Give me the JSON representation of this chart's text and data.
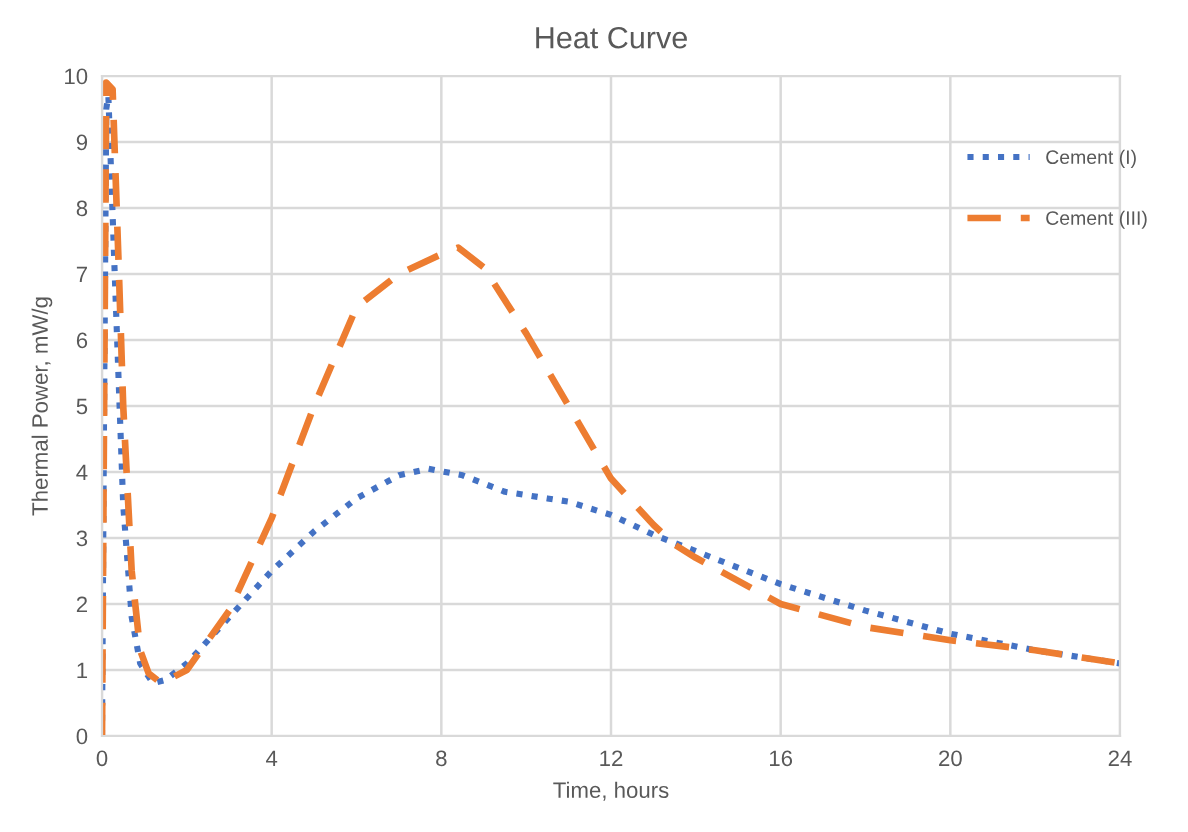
{
  "chart_data": {
    "type": "line",
    "title": "Heat Curve",
    "xlabel": "Time, hours",
    "ylabel": "Thermal Power, mW/g",
    "xlim": [
      0,
      24
    ],
    "xticks": [
      0,
      4,
      8,
      12,
      16,
      20,
      24
    ],
    "ylim": [
      0,
      10
    ],
    "yticks": [
      0,
      1,
      2,
      3,
      4,
      5,
      6,
      7,
      8,
      9,
      10
    ],
    "grid": true,
    "legend": "top right",
    "series": [
      {
        "name": "Cement (I)",
        "color": "#4472c4",
        "line_style": "dotted",
        "x": [
          0,
          0.05,
          0.1,
          0.15,
          0.3,
          0.5,
          0.7,
          0.9,
          1.2,
          1.5,
          2,
          3,
          4,
          5,
          6,
          7,
          7.7,
          8.5,
          9.5,
          10.5,
          11,
          12,
          13,
          14,
          16,
          18,
          20,
          22,
          24
        ],
        "values": [
          0,
          5,
          9.5,
          9.7,
          7,
          3.5,
          1.8,
          1.1,
          0.8,
          0.85,
          1.1,
          1.8,
          2.5,
          3.1,
          3.6,
          3.95,
          4.05,
          3.95,
          3.7,
          3.6,
          3.55,
          3.35,
          3.05,
          2.8,
          2.3,
          1.9,
          1.55,
          1.3,
          1.1
        ]
      },
      {
        "name": "Cement (III)",
        "color": "#ed7d31",
        "line_style": "dashed",
        "x": [
          0,
          0.05,
          0.1,
          0.25,
          0.4,
          0.5,
          0.7,
          0.9,
          1.1,
          1.4,
          2,
          3,
          4,
          5,
          6,
          7,
          8,
          8.4,
          9,
          10,
          11,
          12,
          13,
          13.5,
          14,
          16,
          18,
          20,
          22,
          24
        ],
        "values": [
          0,
          5,
          9.9,
          9.8,
          7,
          5,
          2.5,
          1.3,
          0.95,
          0.8,
          1.0,
          1.9,
          3.3,
          5.0,
          6.5,
          7.0,
          7.3,
          7.4,
          7.1,
          6.1,
          5.0,
          3.9,
          3.2,
          2.9,
          2.7,
          2.0,
          1.65,
          1.45,
          1.3,
          1.1
        ]
      }
    ]
  }
}
